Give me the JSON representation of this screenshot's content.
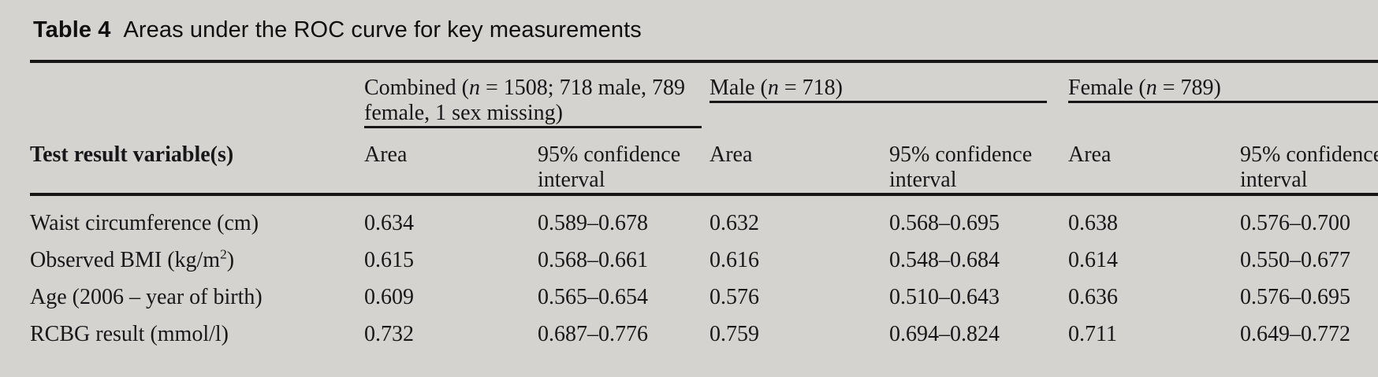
{
  "title": {
    "label": "Table 4",
    "text": "Areas under the ROC curve for key measurements"
  },
  "table": {
    "row_header": "Test result variable(s)",
    "groups": {
      "combined": {
        "pre": "Combined (",
        "n": "n",
        "post": " = 1508; 718 male, 789",
        "line2": "female, 1 sex missing)"
      },
      "male": {
        "pre": "Male (",
        "n": "n",
        "post": " = 718)",
        "line2": ""
      },
      "female": {
        "pre": "Female (",
        "n": "n",
        "post": " = 789)",
        "line2": ""
      }
    },
    "subheaders": {
      "area": "Area",
      "ci_line1": "95% confidence",
      "ci_line2": "interval"
    },
    "rows": [
      {
        "label_pre": "Waist circumference (cm)",
        "label_sup": "",
        "label_post": "",
        "combined_area": "0.634",
        "combined_ci": "0.589–0.678",
        "male_area": "0.632",
        "male_ci": "0.568–0.695",
        "female_area": "0.638",
        "female_ci": "0.576–0.700"
      },
      {
        "label_pre": "Observed BMI (kg/m",
        "label_sup": "2",
        "label_post": ")",
        "combined_area": "0.615",
        "combined_ci": "0.568–0.661",
        "male_area": "0.616",
        "male_ci": "0.548–0.684",
        "female_area": "0.614",
        "female_ci": "0.550–0.677"
      },
      {
        "label_pre": "Age (2006 – year of birth)",
        "label_sup": "",
        "label_post": "",
        "combined_area": "0.609",
        "combined_ci": "0.565–0.654",
        "male_area": "0.576",
        "male_ci": "0.510–0.643",
        "female_area": "0.636",
        "female_ci": "0.576–0.695"
      },
      {
        "label_pre": "RCBG result (mmol/l)",
        "label_sup": "",
        "label_post": "",
        "combined_area": "0.732",
        "combined_ci": "0.687–0.776",
        "male_area": "0.759",
        "male_ci": "0.694–0.824",
        "female_area": "0.711",
        "female_ci": "0.649–0.772"
      }
    ]
  },
  "colors": {
    "background": "#d5d3d0",
    "text": "#17171a",
    "rule": "#161616"
  }
}
